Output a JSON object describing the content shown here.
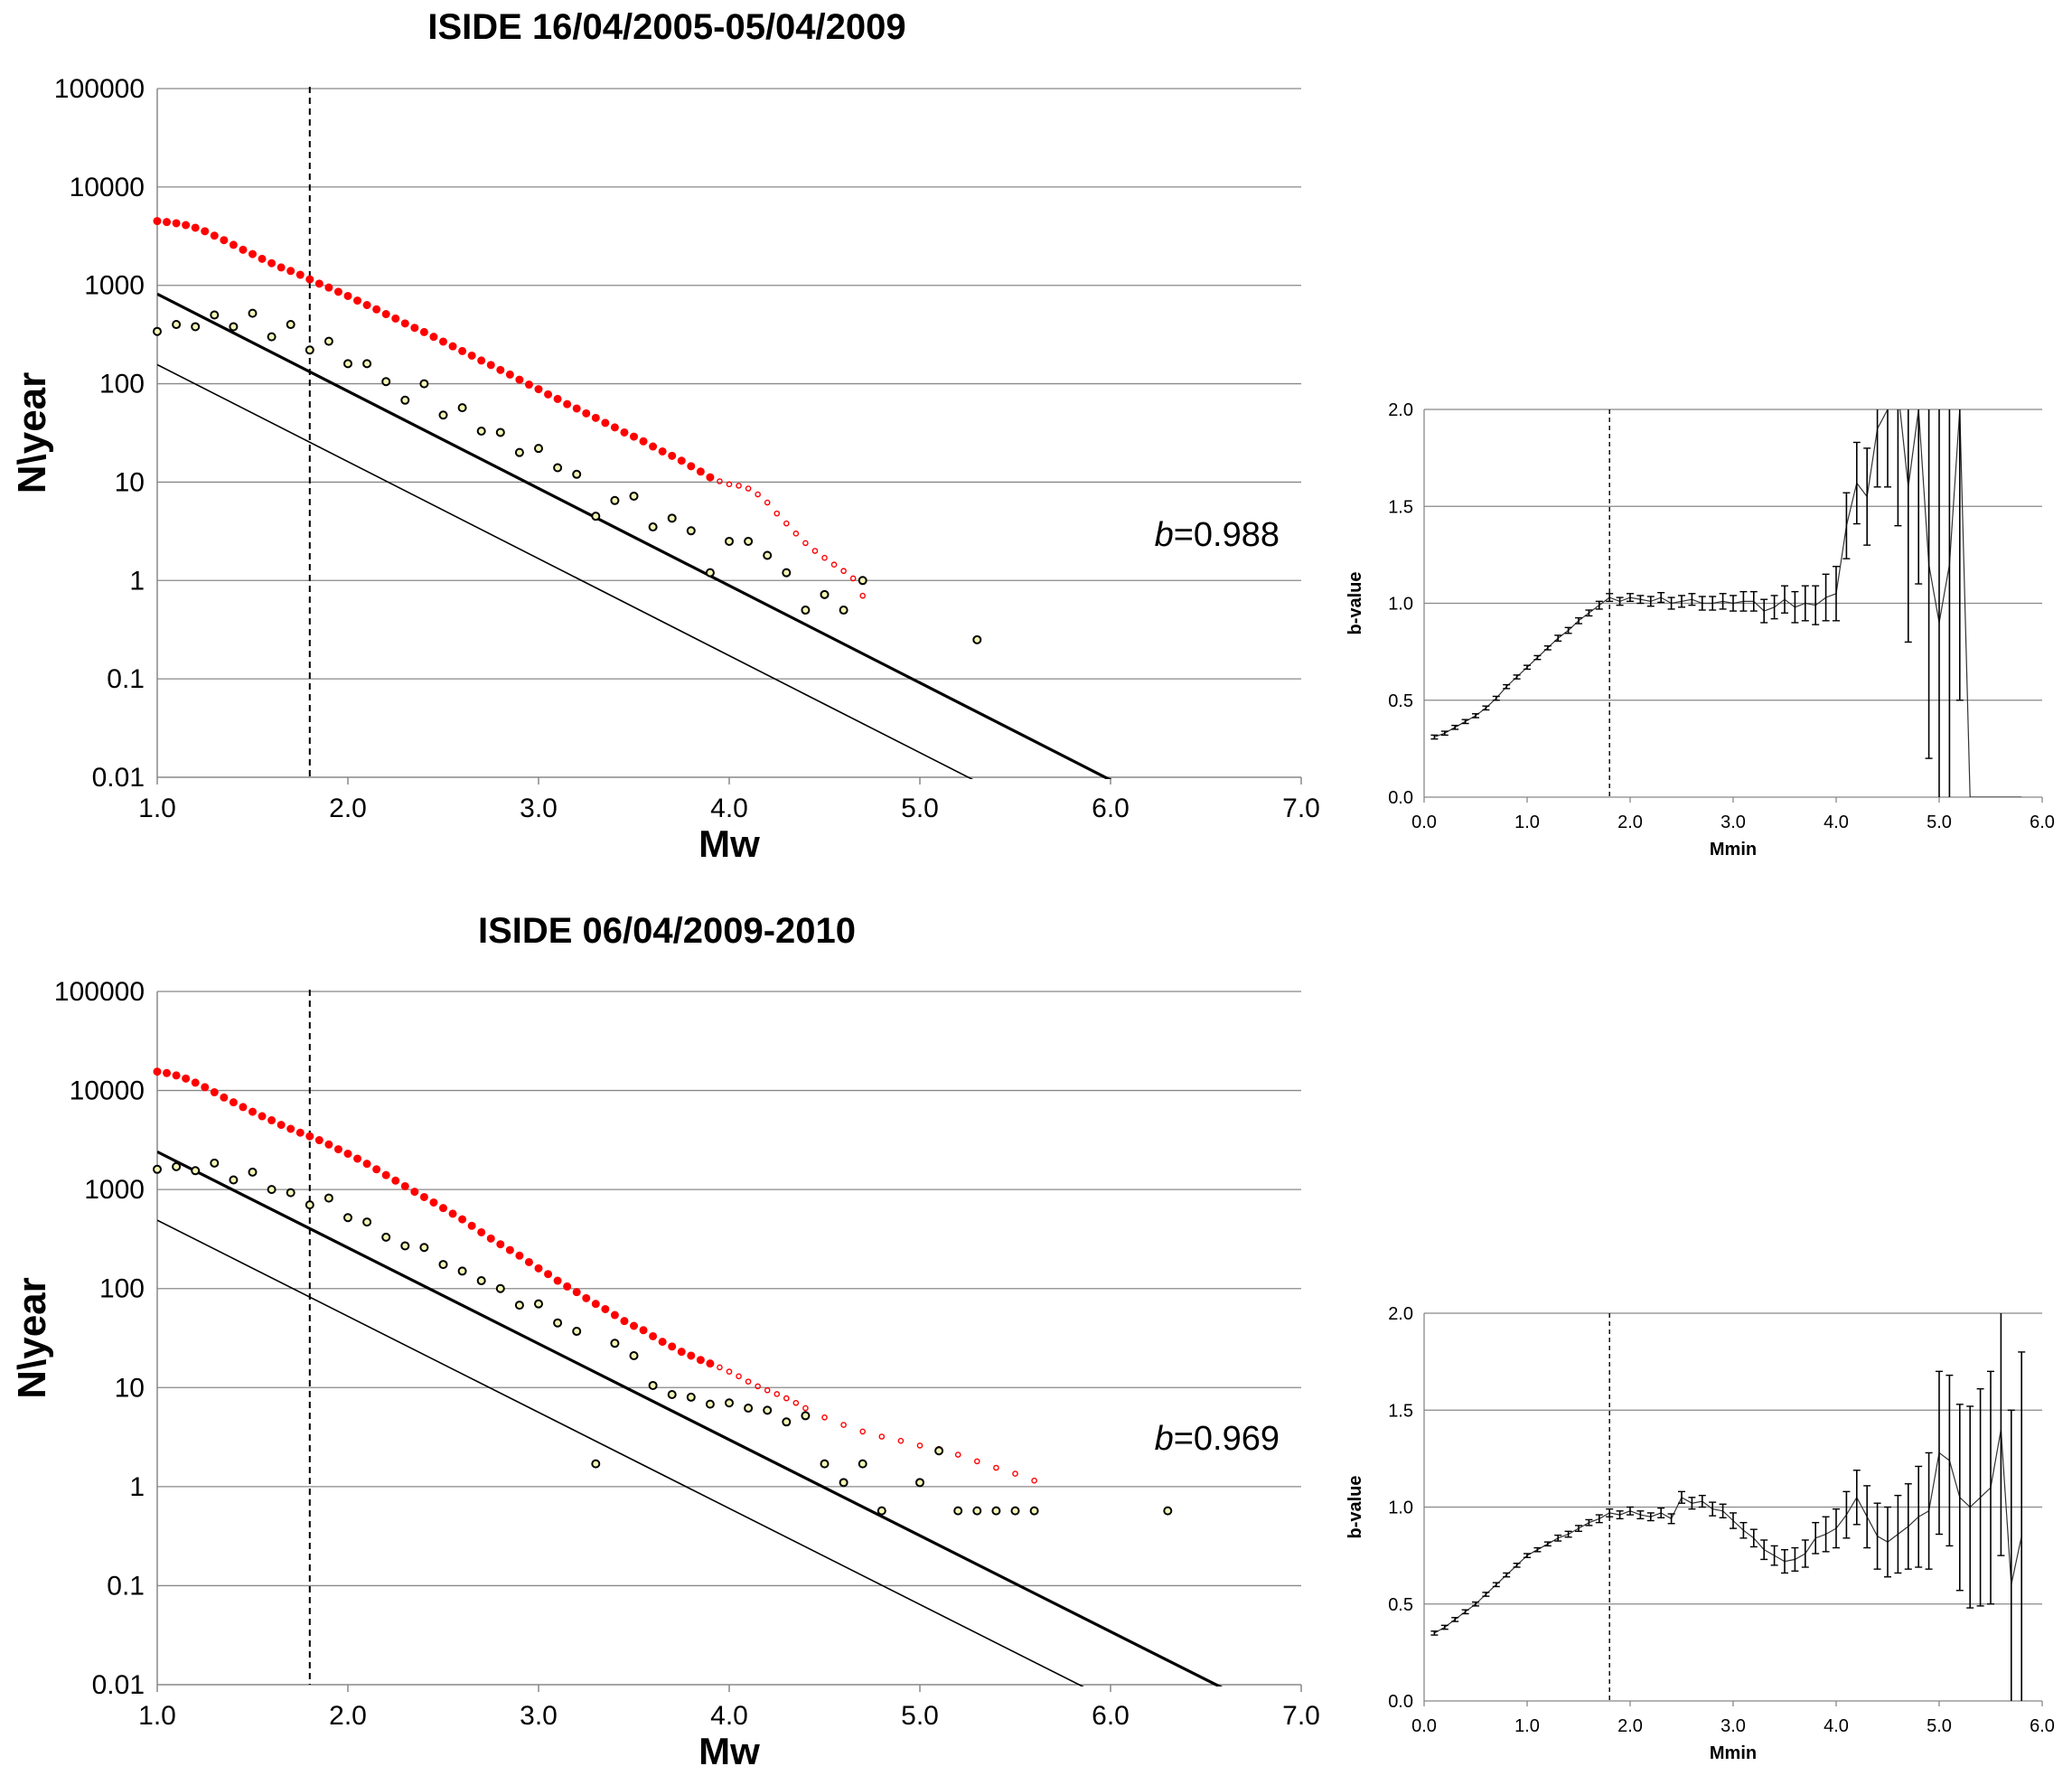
{
  "colors": {
    "red_series": "#ff0000",
    "green_series_fill": "#f4f7b4",
    "axis": "#888888",
    "grid": "#888888",
    "line": "#000000"
  },
  "chart_data": [
    {
      "id": "gr1",
      "type": "scatter",
      "title": "ISIDE 16/04/2005-05/04/2009",
      "xlabel": "Mw",
      "ylabel": "N\\year",
      "xlim": [
        1.0,
        7.0
      ],
      "ylim": [
        0.01,
        100000
      ],
      "yscale": "log",
      "xticks": [
        "1.0",
        "2.0",
        "3.0",
        "4.0",
        "5.0",
        "6.0",
        "7.0"
      ],
      "yticks": [
        "0.01",
        "0.1",
        "1",
        "10",
        "100",
        "1000",
        "10000",
        "100000"
      ],
      "grid": "horizontal",
      "annotation": {
        "italic": "b",
        "text": "=0.988"
      },
      "completeness_mc": 1.8,
      "fit_cumulative": {
        "a": 3.9,
        "b": 0.988
      },
      "fit_incremental": {
        "a": 3.18,
        "b": 0.986
      },
      "cumulative": {
        "x": [
          1.0,
          1.05,
          1.1,
          1.15,
          1.2,
          1.25,
          1.3,
          1.35,
          1.4,
          1.45,
          1.5,
          1.55,
          1.6,
          1.65,
          1.7,
          1.75,
          1.8,
          1.85,
          1.9,
          1.95,
          2.0,
          2.05,
          2.1,
          2.15,
          2.2,
          2.25,
          2.3,
          2.35,
          2.4,
          2.45,
          2.5,
          2.55,
          2.6,
          2.65,
          2.7,
          2.75,
          2.8,
          2.85,
          2.9,
          2.95,
          3.0,
          3.05,
          3.1,
          3.15,
          3.2,
          3.25,
          3.3,
          3.35,
          3.4,
          3.45,
          3.5,
          3.55,
          3.6,
          3.65,
          3.7,
          3.75,
          3.8,
          3.85,
          3.9,
          3.95,
          4.0,
          4.05,
          4.1,
          4.15,
          4.2,
          4.25,
          4.3,
          4.35,
          4.4,
          4.45,
          4.5,
          4.55,
          4.6,
          4.65,
          4.7
        ],
        "y": [
          4500,
          4400,
          4280,
          4100,
          3850,
          3550,
          3200,
          2880,
          2580,
          2300,
          2080,
          1860,
          1680,
          1520,
          1400,
          1280,
          1150,
          1040,
          950,
          860,
          780,
          700,
          630,
          570,
          510,
          460,
          410,
          370,
          335,
          300,
          268,
          240,
          215,
          193,
          172,
          155,
          138,
          124,
          110,
          98,
          88,
          78,
          70,
          62,
          56,
          50,
          45,
          40,
          36,
          32,
          29,
          26,
          23,
          20.5,
          18.5,
          16.5,
          14.5,
          12.8,
          11.2,
          10.2,
          9.5,
          9.2,
          8.6,
          7.5,
          6.2,
          4.8,
          3.8,
          3.0,
          2.4,
          2.0,
          1.7,
          1.45,
          1.25,
          1.05,
          0.7
        ]
      },
      "incremental": {
        "x": [
          1.0,
          1.1,
          1.2,
          1.3,
          1.4,
          1.5,
          1.6,
          1.7,
          1.8,
          1.9,
          2.0,
          2.1,
          2.2,
          2.3,
          2.4,
          2.5,
          2.6,
          2.7,
          2.8,
          2.9,
          3.0,
          3.1,
          3.2,
          3.3,
          3.4,
          3.5,
          3.6,
          3.7,
          3.8,
          3.9,
          4.0,
          4.1,
          4.2,
          4.3,
          4.4,
          4.5,
          4.6,
          4.7,
          5.3
        ],
        "y": [
          340,
          400,
          380,
          500,
          380,
          520,
          300,
          400,
          220,
          270,
          160,
          160,
          105,
          68,
          100,
          48,
          57,
          33,
          32,
          20,
          22,
          14,
          12,
          4.5,
          6.5,
          7.2,
          3.5,
          4.3,
          3.2,
          1.2,
          2.5,
          2.5,
          1.8,
          1.2,
          0.5,
          0.72,
          0.5,
          1.0,
          0.25
        ]
      }
    },
    {
      "id": "bv1",
      "type": "line",
      "xlabel": "Mmin",
      "ylabel": "b-value",
      "xlim": [
        0.0,
        6.0
      ],
      "ylim": [
        0.0,
        2.0
      ],
      "xticks": [
        "0.0",
        "1.0",
        "2.0",
        "3.0",
        "4.0",
        "5.0",
        "6.0"
      ],
      "yticks": [
        "0.0",
        "0.5",
        "1.0",
        "1.5",
        "2.0"
      ],
      "grid": "horizontal",
      "completeness_mc": 1.8,
      "x": [
        0.1,
        0.2,
        0.3,
        0.4,
        0.5,
        0.6,
        0.7,
        0.8,
        0.9,
        1.0,
        1.1,
        1.2,
        1.3,
        1.4,
        1.5,
        1.6,
        1.7,
        1.8,
        1.9,
        2.0,
        2.1,
        2.2,
        2.3,
        2.4,
        2.5,
        2.6,
        2.7,
        2.8,
        2.9,
        3.0,
        3.1,
        3.2,
        3.3,
        3.4,
        3.5,
        3.6,
        3.7,
        3.8,
        3.9,
        4.0,
        4.1,
        4.2,
        4.3,
        4.4,
        4.5,
        4.6,
        4.7,
        4.8,
        4.9,
        5.0,
        5.1,
        5.2,
        5.3,
        5.4,
        5.5,
        5.6,
        5.7,
        5.8
      ],
      "y": [
        0.31,
        0.33,
        0.36,
        0.39,
        0.42,
        0.46,
        0.51,
        0.57,
        0.62,
        0.67,
        0.72,
        0.77,
        0.82,
        0.86,
        0.91,
        0.95,
        0.99,
        1.03,
        1.01,
        1.03,
        1.02,
        1.01,
        1.03,
        1.0,
        1.01,
        1.02,
        1.0,
        1.0,
        1.01,
        1.0,
        1.01,
        1.01,
        0.96,
        0.98,
        1.02,
        0.98,
        1.0,
        0.99,
        1.03,
        1.05,
        1.4,
        1.62,
        1.55,
        1.9,
        2.0,
        2.1,
        1.6,
        2.0,
        1.2,
        0.9,
        1.2,
        2.0,
        0.0,
        0.0,
        0.0,
        0.0,
        0.0,
        0.0
      ],
      "err": [
        0.01,
        0.01,
        0.01,
        0.01,
        0.01,
        0.01,
        0.01,
        0.01,
        0.01,
        0.01,
        0.01,
        0.01,
        0.015,
        0.015,
        0.015,
        0.015,
        0.02,
        0.02,
        0.02,
        0.02,
        0.02,
        0.025,
        0.025,
        0.03,
        0.03,
        0.03,
        0.035,
        0.035,
        0.04,
        0.04,
        0.05,
        0.05,
        0.06,
        0.06,
        0.07,
        0.08,
        0.09,
        0.1,
        0.12,
        0.14,
        0.17,
        0.21,
        0.25,
        0.3,
        0.4,
        0.7,
        0.8,
        0.9,
        1.0,
        1.2,
        1.4,
        1.5,
        0.0,
        0.0,
        0.0,
        0.0,
        0.0,
        0.0
      ]
    },
    {
      "id": "gr2",
      "type": "scatter",
      "title": "ISIDE 06/04/2009-2010",
      "xlabel": "Mw",
      "ylabel": "N\\year",
      "xlim": [
        1.0,
        7.0
      ],
      "ylim": [
        0.01,
        100000
      ],
      "yscale": "log",
      "xticks": [
        "1.0",
        "2.0",
        "3.0",
        "4.0",
        "5.0",
        "6.0",
        "7.0"
      ],
      "yticks": [
        "0.01",
        "0.1",
        "1",
        "10",
        "100",
        "1000",
        "10000",
        "100000"
      ],
      "grid": "horizontal",
      "annotation": {
        "italic": "b",
        "text": "=0.969"
      },
      "completeness_mc": 1.8,
      "fit_cumulative": {
        "a": 4.35,
        "b": 0.969
      },
      "fit_incremental": {
        "a": 3.66,
        "b": 0.97
      },
      "cumulative": {
        "x": [
          1.0,
          1.05,
          1.1,
          1.15,
          1.2,
          1.25,
          1.3,
          1.35,
          1.4,
          1.45,
          1.5,
          1.55,
          1.6,
          1.65,
          1.7,
          1.75,
          1.8,
          1.85,
          1.9,
          1.95,
          2.0,
          2.05,
          2.1,
          2.15,
          2.2,
          2.25,
          2.3,
          2.35,
          2.4,
          2.45,
          2.5,
          2.55,
          2.6,
          2.65,
          2.7,
          2.75,
          2.8,
          2.85,
          2.9,
          2.95,
          3.0,
          3.05,
          3.1,
          3.15,
          3.2,
          3.25,
          3.3,
          3.35,
          3.4,
          3.45,
          3.5,
          3.55,
          3.6,
          3.65,
          3.7,
          3.75,
          3.8,
          3.85,
          3.9,
          3.95,
          4.0,
          4.05,
          4.1,
          4.15,
          4.2,
          4.25,
          4.3,
          4.35,
          4.4,
          4.5,
          4.6,
          4.7,
          4.8,
          4.9,
          5.0,
          5.1,
          5.2,
          5.3,
          5.4,
          5.5,
          5.6
        ],
        "y": [
          15500,
          15000,
          14200,
          13200,
          12000,
          10800,
          9600,
          8500,
          7600,
          6800,
          6100,
          5500,
          5000,
          4500,
          4100,
          3750,
          3450,
          3150,
          2850,
          2550,
          2300,
          2050,
          1820,
          1600,
          1400,
          1230,
          1080,
          950,
          840,
          740,
          650,
          570,
          500,
          430,
          370,
          320,
          280,
          245,
          215,
          185,
          160,
          140,
          120,
          105,
          92,
          80,
          70,
          62,
          54,
          47,
          42,
          38,
          33,
          29,
          26,
          23,
          21,
          19,
          17.5,
          16,
          14.5,
          13,
          11.5,
          10.3,
          9.4,
          8.6,
          7.8,
          7.0,
          6.2,
          5.0,
          4.2,
          3.6,
          3.2,
          2.9,
          2.6,
          2.4,
          2.1,
          1.8,
          1.55,
          1.35,
          1.15
        ]
      },
      "incremental": {
        "x": [
          1.0,
          1.1,
          1.2,
          1.3,
          1.4,
          1.5,
          1.6,
          1.7,
          1.8,
          1.9,
          2.0,
          2.1,
          2.2,
          2.3,
          2.4,
          2.5,
          2.6,
          2.7,
          2.8,
          2.9,
          3.0,
          3.1,
          3.2,
          3.3,
          3.4,
          3.5,
          3.6,
          3.7,
          3.8,
          3.9,
          4.0,
          4.1,
          4.2,
          4.3,
          4.4,
          4.5,
          4.6,
          4.7,
          4.8,
          5.0,
          5.1,
          5.2,
          5.3,
          5.4,
          5.5,
          5.6,
          6.3
        ],
        "y": [
          1600,
          1700,
          1550,
          1850,
          1250,
          1500,
          1000,
          930,
          700,
          820,
          520,
          470,
          330,
          270,
          260,
          175,
          150,
          120,
          100,
          68,
          70,
          45,
          37,
          1.7,
          28,
          21,
          10.5,
          8.5,
          8.0,
          6.8,
          7.0,
          6.2,
          5.9,
          4.5,
          5.2,
          1.7,
          1.1,
          1.7,
          0.57,
          1.1,
          2.3,
          0.57,
          0.57,
          0.57,
          0.57,
          0.57,
          0.57
        ]
      }
    },
    {
      "id": "bv2",
      "type": "line",
      "xlabel": "Mmin",
      "ylabel": "b-value",
      "xlim": [
        0.0,
        6.0
      ],
      "ylim": [
        0.0,
        2.0
      ],
      "xticks": [
        "0.0",
        "1.0",
        "2.0",
        "3.0",
        "4.0",
        "5.0",
        "6.0"
      ],
      "yticks": [
        "0.0",
        "0.5",
        "1.0",
        "1.5",
        "2.0"
      ],
      "grid": "horizontal",
      "completeness_mc": 1.8,
      "x": [
        0.1,
        0.2,
        0.3,
        0.4,
        0.5,
        0.6,
        0.7,
        0.8,
        0.9,
        1.0,
        1.1,
        1.2,
        1.3,
        1.4,
        1.5,
        1.6,
        1.7,
        1.8,
        1.9,
        2.0,
        2.1,
        2.2,
        2.3,
        2.4,
        2.5,
        2.6,
        2.7,
        2.8,
        2.9,
        3.0,
        3.1,
        3.2,
        3.3,
        3.4,
        3.5,
        3.6,
        3.7,
        3.8,
        3.9,
        4.0,
        4.1,
        4.2,
        4.3,
        4.4,
        4.5,
        4.6,
        4.7,
        4.8,
        4.9,
        5.0,
        5.1,
        5.2,
        5.3,
        5.4,
        5.5,
        5.6,
        5.7,
        5.8
      ],
      "y": [
        0.35,
        0.38,
        0.42,
        0.46,
        0.5,
        0.55,
        0.6,
        0.65,
        0.7,
        0.75,
        0.78,
        0.81,
        0.84,
        0.86,
        0.89,
        0.92,
        0.94,
        0.97,
        0.96,
        0.98,
        0.96,
        0.95,
        0.97,
        0.94,
        1.05,
        1.02,
        1.03,
        0.99,
        0.98,
        0.93,
        0.88,
        0.84,
        0.78,
        0.75,
        0.72,
        0.73,
        0.76,
        0.84,
        0.86,
        0.89,
        0.96,
        1.05,
        0.95,
        0.85,
        0.82,
        0.86,
        0.9,
        0.95,
        0.98,
        1.28,
        1.24,
        1.05,
        1.0,
        1.05,
        1.1,
        1.4,
        0.6,
        0.85
      ],
      "err": [
        0.01,
        0.01,
        0.01,
        0.01,
        0.01,
        0.01,
        0.01,
        0.01,
        0.01,
        0.01,
        0.01,
        0.01,
        0.015,
        0.015,
        0.015,
        0.015,
        0.02,
        0.02,
        0.02,
        0.02,
        0.02,
        0.02,
        0.025,
        0.025,
        0.03,
        0.03,
        0.03,
        0.035,
        0.035,
        0.04,
        0.04,
        0.045,
        0.05,
        0.05,
        0.06,
        0.06,
        0.07,
        0.08,
        0.09,
        0.1,
        0.12,
        0.14,
        0.16,
        0.17,
        0.18,
        0.2,
        0.22,
        0.26,
        0.3,
        0.42,
        0.44,
        0.48,
        0.52,
        0.56,
        0.6,
        0.65,
        0.9,
        0.95
      ]
    }
  ]
}
